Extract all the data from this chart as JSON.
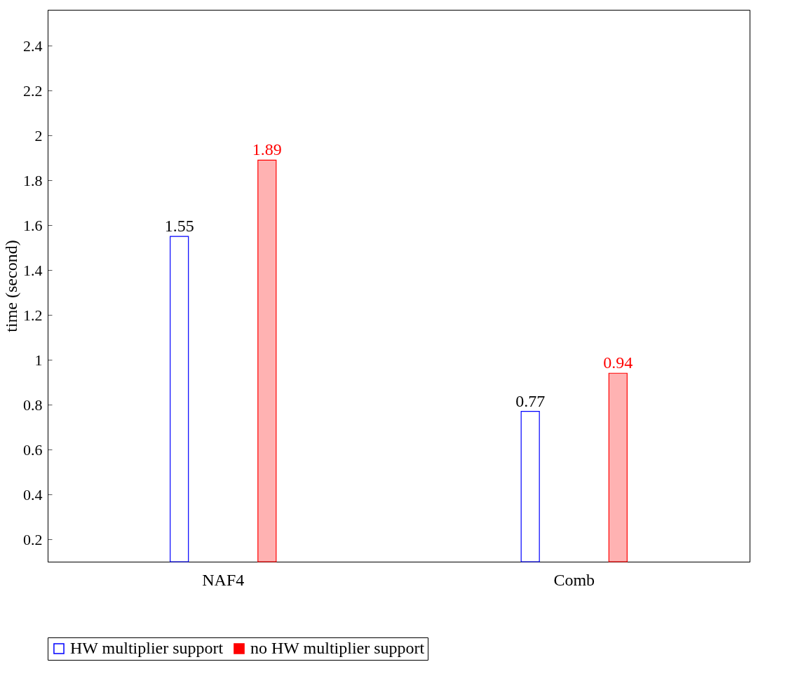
{
  "chart_data": {
    "type": "bar",
    "ylabel": "time (second)",
    "categories": [
      "NAF4",
      "Comb"
    ],
    "series": [
      {
        "name": "HW multiplier support",
        "color": "#0000ff",
        "values": [
          1.55,
          0.77
        ]
      },
      {
        "name": "no HW multiplier support",
        "color": "#ff0000",
        "values": [
          1.89,
          0.94
        ]
      }
    ],
    "ylim": [
      0.1,
      2.56
    ],
    "yticks": [
      0.2,
      0.4,
      0.6,
      0.8,
      1,
      1.2,
      1.4,
      1.6,
      1.8,
      2,
      2.2,
      2.4
    ],
    "data_labels": true,
    "legend": "bottom",
    "grid": false
  }
}
